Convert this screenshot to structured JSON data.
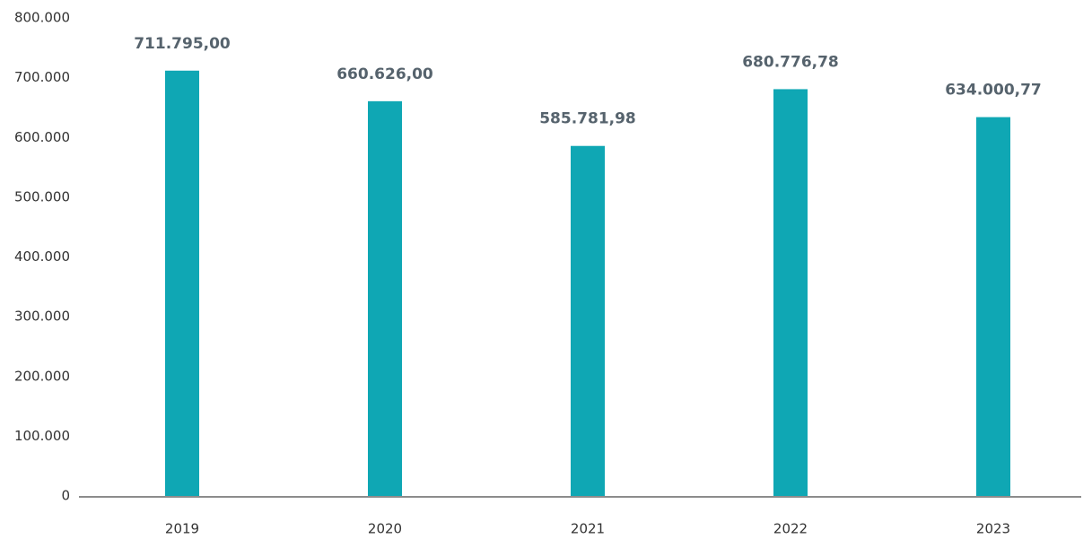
{
  "chart_data": {
    "type": "bar",
    "categories": [
      "2019",
      "2020",
      "2021",
      "2022",
      "2023"
    ],
    "values": [
      711795,
      660626,
      585781.98,
      680776.78,
      634000.77
    ],
    "value_labels": [
      "711.795,00",
      "660.626,00",
      "585.781,98",
      "680.776,78",
      "634.000,77"
    ],
    "color": "#0fa7b4",
    "ylim": [
      0,
      800000
    ],
    "yticks": [
      0,
      {
        "value": 100000,
        "label": "100.000"
      },
      {
        "value": 200000,
        "label": "200.000"
      },
      {
        "value": 300000,
        "label": "300.000"
      },
      {
        "value": 400000,
        "label": "400.000"
      },
      {
        "value": 500000,
        "label": "500.000"
      },
      {
        "value": 600000,
        "label": "600.000"
      },
      {
        "value": 700000,
        "label": "700.000"
      },
      {
        "value": 800000,
        "label": "800.000"
      }
    ],
    "grid": false
  }
}
